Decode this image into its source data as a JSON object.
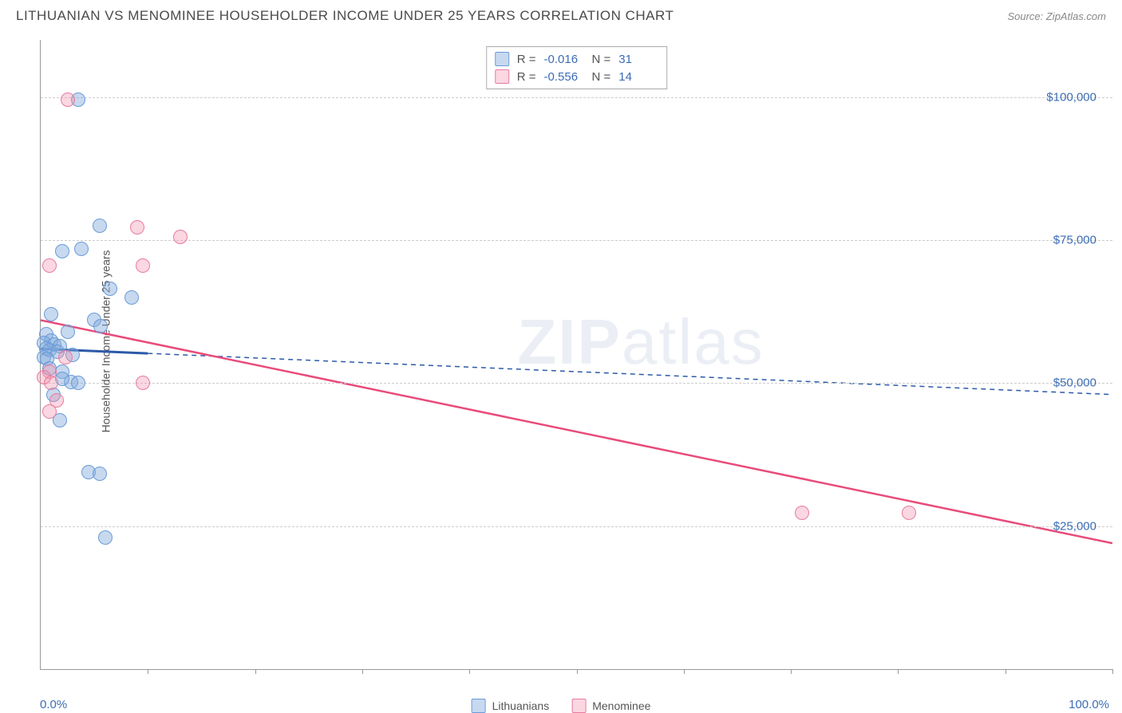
{
  "header": {
    "title": "LITHUANIAN VS MENOMINEE HOUSEHOLDER INCOME UNDER 25 YEARS CORRELATION CHART",
    "source_label": "Source: ",
    "source_value": "ZipAtlas.com"
  },
  "chart": {
    "type": "scatter",
    "y_axis_label": "Householder Income Under 25 years",
    "x_axis": {
      "min_label": "0.0%",
      "max_label": "100.0%",
      "min": 0,
      "max": 100,
      "tick_positions": [
        10,
        20,
        30,
        40,
        50,
        60,
        70,
        80,
        90,
        100
      ]
    },
    "y_axis": {
      "min": 0,
      "max": 110000,
      "ticks": [
        {
          "value": 25000,
          "label": "$25,000"
        },
        {
          "value": 50000,
          "label": "$50,000"
        },
        {
          "value": 75000,
          "label": "$75,000"
        },
        {
          "value": 100000,
          "label": "$100,000"
        }
      ]
    },
    "grid_color": "#cccccc",
    "background_color": "#ffffff",
    "series": [
      {
        "name": "Lithuanians",
        "fill": "rgba(130,170,220,0.45)",
        "stroke": "#6a9bd8",
        "marker_radius": 9,
        "r_value": "-0.016",
        "n_value": "31",
        "trend": {
          "color": "#2d5aa8",
          "style": "solid-then-dashed",
          "start_y": 56000,
          "end_y": 48000,
          "solid_until_x": 10,
          "width": 2
        },
        "points": [
          {
            "x": 3.5,
            "y": 99500
          },
          {
            "x": 5.5,
            "y": 77500
          },
          {
            "x": 3.8,
            "y": 73500
          },
          {
            "x": 2.0,
            "y": 73000
          },
          {
            "x": 6.5,
            "y": 66500
          },
          {
            "x": 8.5,
            "y": 65000
          },
          {
            "x": 1.0,
            "y": 62000
          },
          {
            "x": 5.0,
            "y": 61000
          },
          {
            "x": 5.6,
            "y": 60000
          },
          {
            "x": 2.5,
            "y": 59000
          },
          {
            "x": 0.5,
            "y": 58500
          },
          {
            "x": 1.0,
            "y": 57500
          },
          {
            "x": 0.3,
            "y": 57000
          },
          {
            "x": 1.3,
            "y": 56800
          },
          {
            "x": 1.8,
            "y": 56500
          },
          {
            "x": 0.5,
            "y": 56000
          },
          {
            "x": 0.8,
            "y": 55800
          },
          {
            "x": 1.6,
            "y": 55500
          },
          {
            "x": 3.0,
            "y": 55000
          },
          {
            "x": 0.3,
            "y": 54500
          },
          {
            "x": 0.6,
            "y": 54200
          },
          {
            "x": 0.8,
            "y": 52500
          },
          {
            "x": 2.0,
            "y": 52000
          },
          {
            "x": 2.8,
            "y": 50200
          },
          {
            "x": 3.5,
            "y": 50000
          },
          {
            "x": 1.2,
            "y": 48000
          },
          {
            "x": 1.8,
            "y": 43500
          },
          {
            "x": 4.5,
            "y": 34500
          },
          {
            "x": 5.5,
            "y": 34200
          },
          {
            "x": 2.0,
            "y": 50800
          },
          {
            "x": 6.0,
            "y": 23000
          }
        ]
      },
      {
        "name": "Menominee",
        "fill": "rgba(240,140,170,0.35)",
        "stroke": "#e87ba0",
        "marker_radius": 9,
        "r_value": "-0.556",
        "n_value": "14",
        "trend": {
          "color": "#e84b7a",
          "style": "solid",
          "start_y": 61000,
          "end_y": 22000,
          "width": 2.5
        },
        "points": [
          {
            "x": 2.5,
            "y": 99500
          },
          {
            "x": 9.0,
            "y": 77200
          },
          {
            "x": 13.0,
            "y": 75500
          },
          {
            "x": 0.8,
            "y": 70500
          },
          {
            "x": 9.5,
            "y": 70500
          },
          {
            "x": 2.3,
            "y": 54500
          },
          {
            "x": 0.8,
            "y": 52000
          },
          {
            "x": 0.3,
            "y": 51000
          },
          {
            "x": 1.0,
            "y": 50000
          },
          {
            "x": 9.5,
            "y": 50000
          },
          {
            "x": 1.5,
            "y": 47000
          },
          {
            "x": 0.8,
            "y": 45000
          },
          {
            "x": 71.0,
            "y": 27300
          },
          {
            "x": 81.0,
            "y": 27300
          }
        ]
      }
    ],
    "watermark": {
      "pre": "ZIP",
      "post": "atlas"
    }
  }
}
